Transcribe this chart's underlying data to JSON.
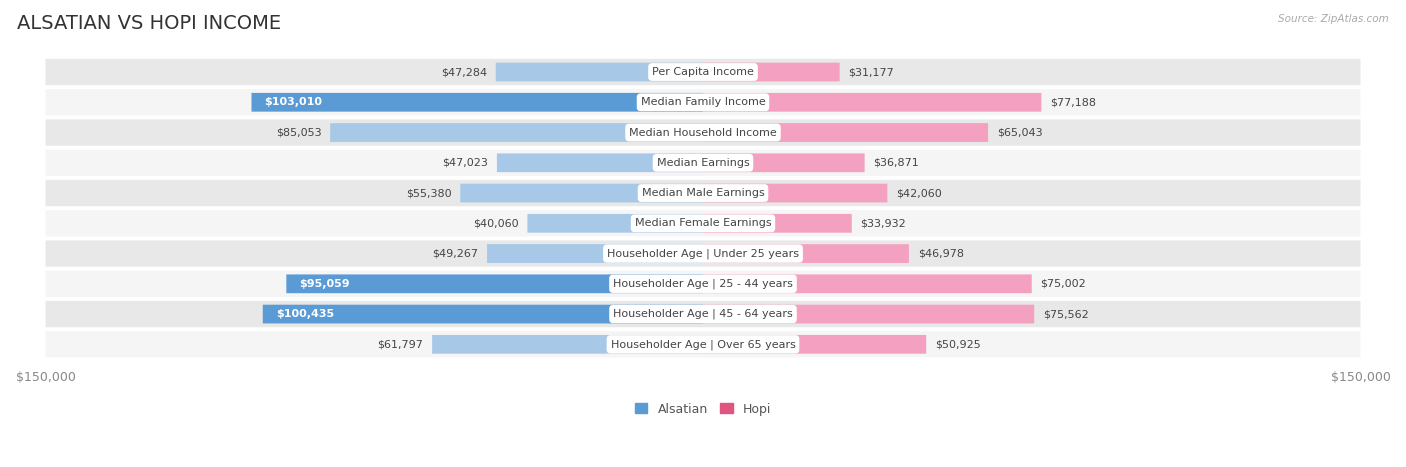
{
  "title": "ALSATIAN VS HOPI INCOME",
  "source": "Source: ZipAtlas.com",
  "max_val": 150000,
  "categories": [
    "Per Capita Income",
    "Median Family Income",
    "Median Household Income",
    "Median Earnings",
    "Median Male Earnings",
    "Median Female Earnings",
    "Householder Age | Under 25 years",
    "Householder Age | 25 - 44 years",
    "Householder Age | 45 - 64 years",
    "Householder Age | Over 65 years"
  ],
  "alsatian": [
    47284,
    103010,
    85053,
    47023,
    55380,
    40060,
    49267,
    95059,
    100435,
    61797
  ],
  "hopi": [
    31177,
    77188,
    65043,
    36871,
    42060,
    33932,
    46978,
    75002,
    75562,
    50925
  ],
  "alsatian_color_normal": "#a8c8e8",
  "alsatian_color_over": "#5b9bd5",
  "hopi_color_normal": "#f4a0c0",
  "hopi_color_over": "#e05580",
  "alsatian_over_threshold": 90000,
  "hopi_over_threshold": 90000,
  "bg_color": "#ffffff",
  "row_bg_even": "#e8e8e8",
  "row_bg_odd": "#f5f5f5",
  "title_fontsize": 14,
  "tick_label_fontsize": 9,
  "bar_label_fontsize": 8,
  "category_fontsize": 8
}
